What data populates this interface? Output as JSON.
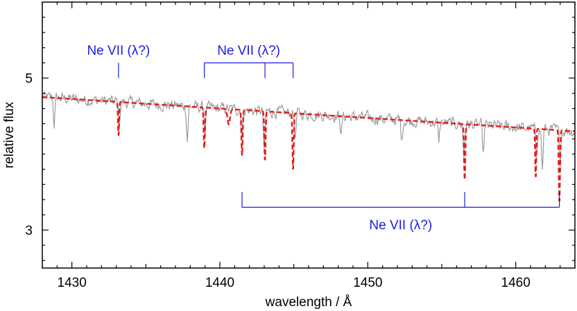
{
  "chart_data": {
    "type": "line",
    "title": "",
    "xlabel": "wavelength / Å",
    "ylabel": "relative flux",
    "xlim": [
      1428,
      1464
    ],
    "ylim": [
      2.5,
      6.0
    ],
    "x_ticks": [
      1430,
      1440,
      1450,
      1460
    ],
    "y_ticks": [
      3,
      5
    ],
    "grid": false,
    "colors": {
      "observed": "#9a9a9a",
      "model": "#e41a1a",
      "line_ids": "#1a1ae6"
    },
    "series": [
      {
        "style": "solid-gray",
        "description_free": true,
        "continuum": [
          [
            1428,
            4.75
          ],
          [
            1464,
            4.3
          ]
        ],
        "noise_amplitude": 0.12,
        "absorptions": [
          {
            "x": 1428.8,
            "depth": 0.35
          },
          {
            "x": 1433.2,
            "depth": 0.3
          },
          {
            "x": 1437.8,
            "depth": 0.45
          },
          {
            "x": 1439.0,
            "depth": 0.3
          },
          {
            "x": 1441.5,
            "depth": 0.35
          },
          {
            "x": 1443.0,
            "depth": 0.55
          },
          {
            "x": 1445.1,
            "depth": 0.35
          },
          {
            "x": 1448.2,
            "depth": 0.25
          },
          {
            "x": 1452.3,
            "depth": 0.3
          },
          {
            "x": 1454.8,
            "depth": 0.25
          },
          {
            "x": 1456.5,
            "depth": 0.45
          },
          {
            "x": 1457.8,
            "depth": 0.4
          },
          {
            "x": 1461.4,
            "depth": 0.35
          },
          {
            "x": 1461.8,
            "depth": 0.55
          },
          {
            "x": 1463.0,
            "depth": 0.4
          }
        ]
      },
      {
        "style": "dashed-red",
        "continuum": [
          [
            1428,
            4.75
          ],
          [
            1464,
            4.3
          ]
        ],
        "absorptions": [
          {
            "x": 1433.15,
            "depth": 0.45,
            "width": 0.05
          },
          {
            "x": 1438.95,
            "depth": 0.55,
            "width": 0.06
          },
          {
            "x": 1440.6,
            "depth": 0.2,
            "width": 0.12
          },
          {
            "x": 1441.5,
            "depth": 0.6,
            "width": 0.06
          },
          {
            "x": 1443.05,
            "depth": 0.65,
            "width": 0.06
          },
          {
            "x": 1444.95,
            "depth": 0.75,
            "width": 0.06
          },
          {
            "x": 1456.55,
            "depth": 0.75,
            "width": 0.06
          },
          {
            "x": 1461.35,
            "depth": 0.65,
            "width": 0.05
          },
          {
            "x": 1462.95,
            "depth": 0.95,
            "width": 0.06
          }
        ]
      }
    ],
    "line_ids": [
      {
        "label": "Ne VII (λ?)",
        "x": [
          1433.15
        ],
        "bar_y": 5.2,
        "tick_to": 5.0,
        "label_pos": "above"
      },
      {
        "label": "Ne VII (λ?)",
        "x": [
          1438.95,
          1443.05,
          1444.95
        ],
        "bar_y": 5.2,
        "tick_to": 5.0,
        "label_pos": "above"
      },
      {
        "label": "Ne VII (λ?)",
        "x": [
          1441.5,
          1456.55,
          1462.95
        ],
        "bar_y": 3.3,
        "tick_to": 3.5,
        "label_pos": "below"
      }
    ]
  }
}
